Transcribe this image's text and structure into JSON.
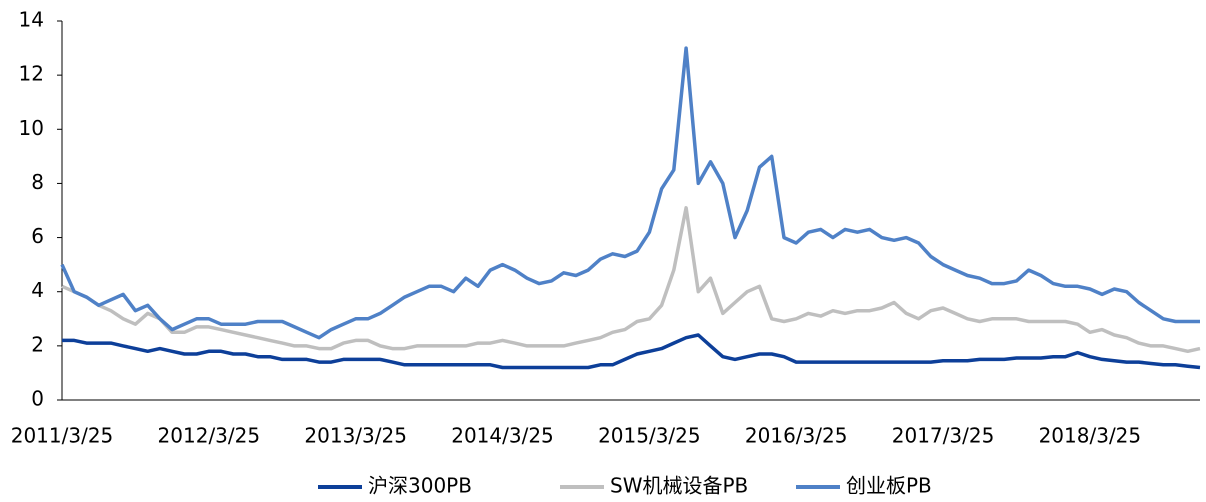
{
  "chart_data": {
    "type": "line",
    "categories": [
      "2011/3/25",
      null,
      null,
      null,
      null,
      null,
      null,
      null,
      null,
      null,
      null,
      null,
      "2012/3/25",
      null,
      null,
      null,
      null,
      null,
      null,
      null,
      null,
      null,
      null,
      null,
      "2013/3/25",
      null,
      null,
      null,
      null,
      null,
      null,
      null,
      null,
      null,
      null,
      null,
      "2014/3/25",
      null,
      null,
      null,
      null,
      null,
      null,
      null,
      null,
      null,
      null,
      null,
      "2015/3/25",
      null,
      null,
      null,
      null,
      null,
      null,
      null,
      null,
      null,
      null,
      null,
      "2016/3/25",
      null,
      null,
      null,
      null,
      null,
      null,
      null,
      null,
      null,
      null,
      null,
      "2017/3/25",
      null,
      null,
      null,
      null,
      null,
      null,
      null,
      null,
      null,
      null,
      null,
      "2018/3/25",
      null,
      null,
      null,
      null,
      null,
      null,
      null,
      null,
      null
    ],
    "series": [
      {
        "name": "沪深300PB",
        "color": "#0d3f99",
        "values": [
          2.2,
          2.2,
          2.1,
          2.1,
          2.1,
          2.0,
          1.9,
          1.8,
          1.9,
          1.8,
          1.7,
          1.7,
          1.8,
          1.8,
          1.7,
          1.7,
          1.6,
          1.6,
          1.5,
          1.5,
          1.5,
          1.4,
          1.4,
          1.5,
          1.5,
          1.5,
          1.5,
          1.4,
          1.3,
          1.3,
          1.3,
          1.3,
          1.3,
          1.3,
          1.3,
          1.3,
          1.2,
          1.2,
          1.2,
          1.2,
          1.2,
          1.2,
          1.2,
          1.2,
          1.3,
          1.3,
          1.5,
          1.7,
          1.8,
          1.9,
          2.1,
          2.3,
          2.4,
          2.0,
          1.6,
          1.5,
          1.6,
          1.7,
          1.7,
          1.6,
          1.4,
          1.4,
          1.4,
          1.4,
          1.4,
          1.4,
          1.4,
          1.4,
          1.4,
          1.4,
          1.4,
          1.4,
          1.45,
          1.45,
          1.45,
          1.5,
          1.5,
          1.5,
          1.55,
          1.55,
          1.55,
          1.6,
          1.6,
          1.75,
          1.6,
          1.5,
          1.45,
          1.4,
          1.4,
          1.35,
          1.3,
          1.3,
          1.25,
          1.2
        ]
      },
      {
        "name": "SW机械设备PB",
        "color": "#bfbfbf",
        "values": [
          4.2,
          4.0,
          3.8,
          3.5,
          3.3,
          3.0,
          2.8,
          3.2,
          3.0,
          2.5,
          2.5,
          2.7,
          2.7,
          2.6,
          2.5,
          2.4,
          2.3,
          2.2,
          2.1,
          2.0,
          2.0,
          1.9,
          1.9,
          2.1,
          2.2,
          2.2,
          2.0,
          1.9,
          1.9,
          2.0,
          2.0,
          2.0,
          2.0,
          2.0,
          2.1,
          2.1,
          2.2,
          2.1,
          2.0,
          2.0,
          2.0,
          2.0,
          2.1,
          2.2,
          2.3,
          2.5,
          2.6,
          2.9,
          3.0,
          3.5,
          4.8,
          7.1,
          4.0,
          4.5,
          3.2,
          3.6,
          4.0,
          4.2,
          3.0,
          2.9,
          3.0,
          3.2,
          3.1,
          3.3,
          3.2,
          3.3,
          3.3,
          3.4,
          3.6,
          3.2,
          3.0,
          3.3,
          3.4,
          3.2,
          3.0,
          2.9,
          3.0,
          3.0,
          3.0,
          2.9,
          2.9,
          2.9,
          2.9,
          2.8,
          2.5,
          2.6,
          2.4,
          2.3,
          2.1,
          2.0,
          2.0,
          1.9,
          1.8,
          1.9
        ]
      },
      {
        "name": "创业板PB",
        "color": "#4f81c7",
        "values": [
          5.0,
          4.0,
          3.8,
          3.5,
          3.7,
          3.9,
          3.3,
          3.5,
          3.0,
          2.6,
          2.8,
          3.0,
          3.0,
          2.8,
          2.8,
          2.8,
          2.9,
          2.9,
          2.9,
          2.7,
          2.5,
          2.3,
          2.6,
          2.8,
          3.0,
          3.0,
          3.2,
          3.5,
          3.8,
          4.0,
          4.2,
          4.2,
          4.0,
          4.5,
          4.2,
          4.8,
          5.0,
          4.8,
          4.5,
          4.3,
          4.4,
          4.7,
          4.6,
          4.8,
          5.2,
          5.4,
          5.3,
          5.5,
          6.2,
          7.8,
          8.5,
          13.0,
          8.0,
          8.8,
          8.0,
          6.0,
          7.0,
          8.6,
          9.0,
          6.0,
          5.8,
          6.2,
          6.3,
          6.0,
          6.3,
          6.2,
          6.3,
          6.0,
          5.9,
          6.0,
          5.8,
          5.3,
          5.0,
          4.8,
          4.6,
          4.5,
          4.3,
          4.3,
          4.4,
          4.8,
          4.6,
          4.3,
          4.2,
          4.2,
          4.1,
          3.9,
          4.1,
          4.0,
          3.6,
          3.3,
          3.0,
          2.9,
          2.9,
          2.9
        ]
      }
    ],
    "ylim": [
      0,
      14
    ],
    "yticks": [
      0,
      2,
      4,
      6,
      8,
      10,
      12,
      14
    ],
    "legend": "bottom"
  }
}
